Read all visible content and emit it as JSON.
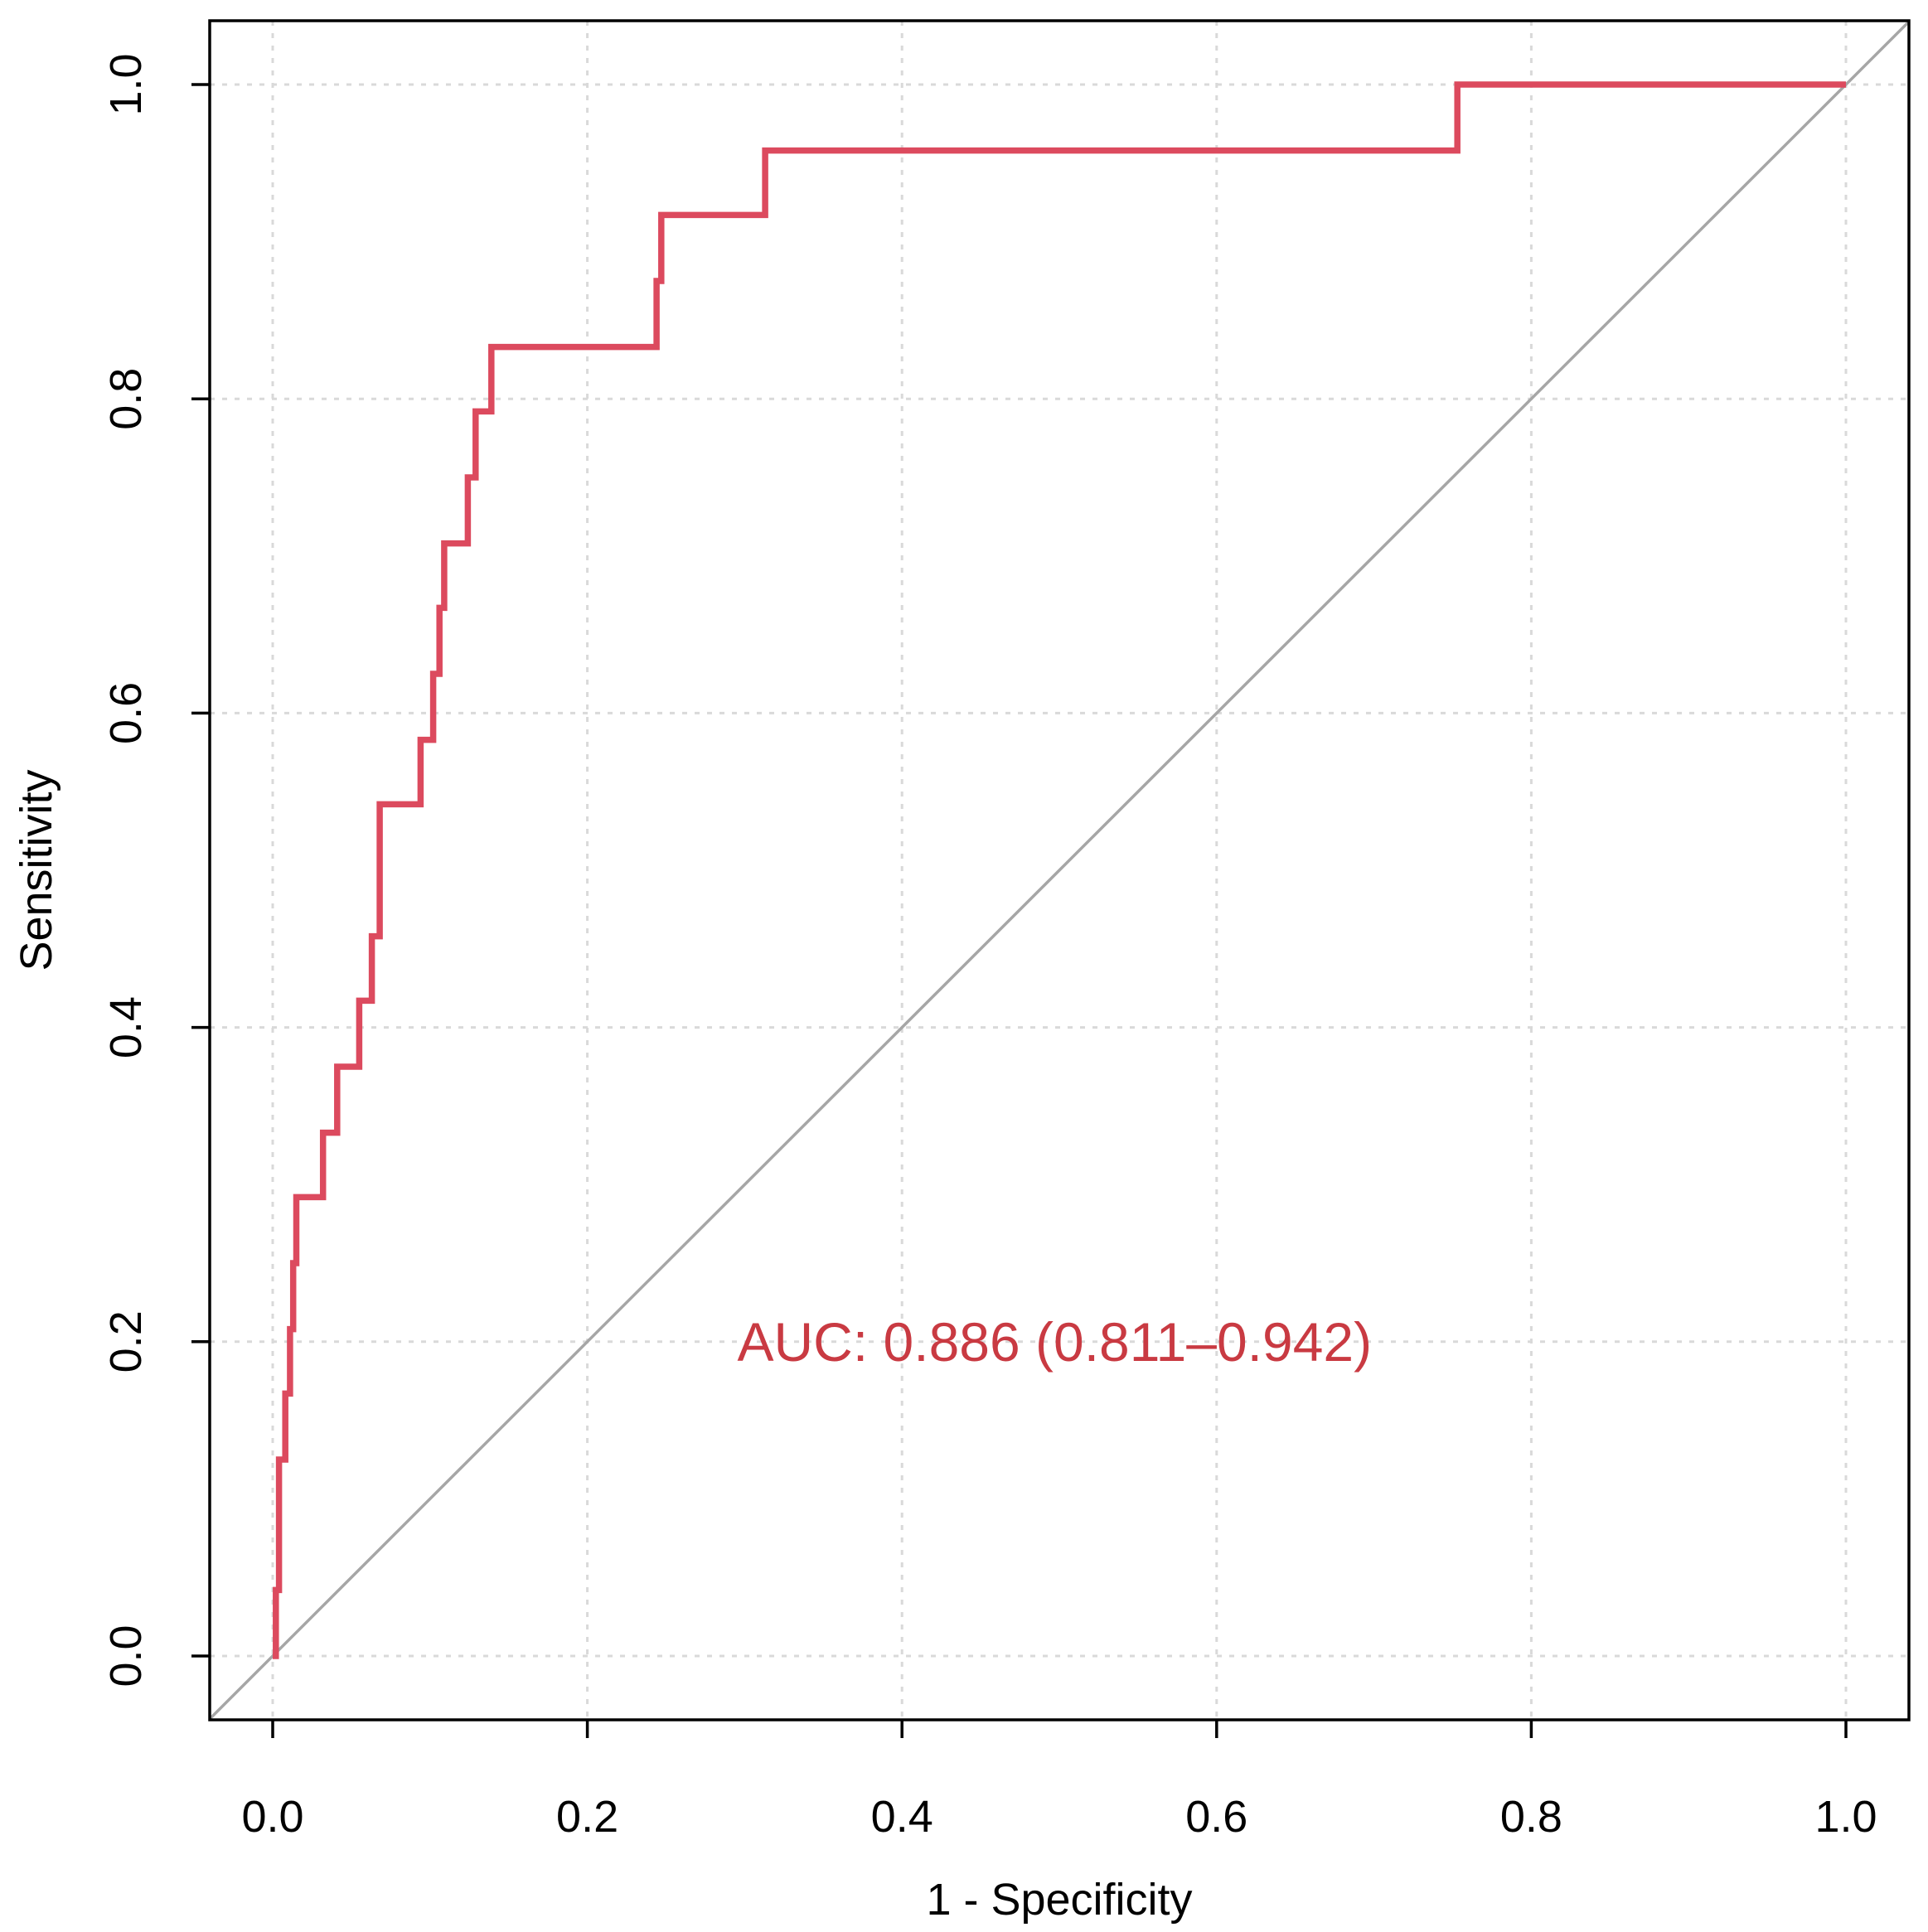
{
  "chart_data": {
    "type": "line",
    "title": "",
    "xlabel": "1 - Specificity",
    "ylabel": "Sensitivity",
    "xlim": [
      0.0,
      1.0
    ],
    "ylim": [
      0.0,
      1.0
    ],
    "grid": true,
    "x_ticks": [
      "0.0",
      "0.2",
      "0.4",
      "0.6",
      "0.8",
      "1.0"
    ],
    "y_ticks": [
      "0.0",
      "0.2",
      "0.4",
      "0.6",
      "0.8",
      "1.0"
    ],
    "x_tick_values": [
      0.0,
      0.2,
      0.4,
      0.6,
      0.8,
      1.0
    ],
    "y_tick_values": [
      0.0,
      0.2,
      0.4,
      0.6,
      0.8,
      1.0
    ],
    "series": [
      {
        "name": "ROC",
        "color": "#dc4a5e",
        "x": [
          0.0,
          0.002,
          0.002,
          0.004,
          0.004,
          0.008,
          0.008,
          0.011,
          0.011,
          0.013,
          0.013,
          0.015,
          0.015,
          0.032,
          0.032,
          0.041,
          0.041,
          0.055,
          0.055,
          0.063,
          0.063,
          0.068,
          0.068,
          0.094,
          0.094,
          0.102,
          0.102,
          0.106,
          0.106,
          0.109,
          0.109,
          0.124,
          0.124,
          0.129,
          0.129,
          0.139,
          0.139,
          0.244,
          0.244,
          0.247,
          0.247,
          0.313,
          0.313,
          0.753,
          0.753,
          1.0
        ],
        "y": [
          0.0,
          0.0,
          0.042,
          0.042,
          0.125,
          0.125,
          0.167,
          0.167,
          0.208,
          0.208,
          0.25,
          0.25,
          0.292,
          0.292,
          0.333,
          0.333,
          0.375,
          0.375,
          0.417,
          0.417,
          0.458,
          0.458,
          0.542,
          0.542,
          0.583,
          0.583,
          0.625,
          0.625,
          0.667,
          0.667,
          0.708,
          0.708,
          0.75,
          0.75,
          0.792,
          0.792,
          0.833,
          0.833,
          0.875,
          0.875,
          0.917,
          0.917,
          0.958,
          0.958,
          1.0,
          1.0
        ]
      },
      {
        "name": "reference",
        "color": "#a6a6a6",
        "x": [
          0.0,
          1.0
        ],
        "y": [
          0.0,
          1.0
        ]
      }
    ],
    "annotations": [
      {
        "text": "AUC: 0.886 (0.811–0.942)",
        "x": 0.497,
        "y": 0.2,
        "color": "#c93a42"
      }
    ]
  }
}
